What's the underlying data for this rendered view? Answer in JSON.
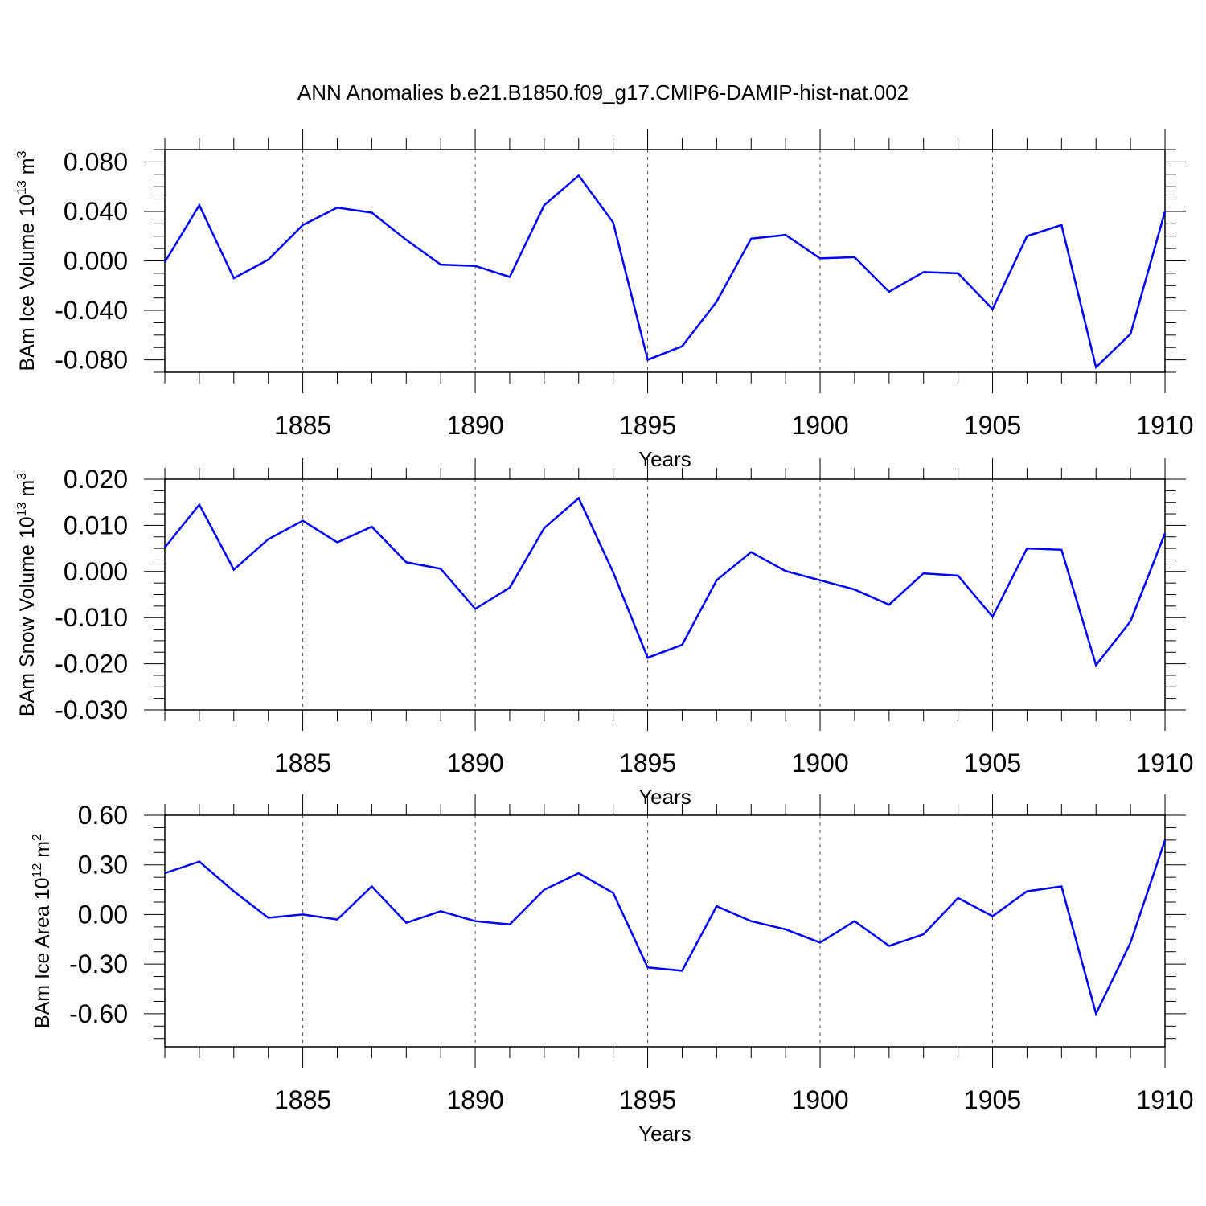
{
  "figure_title": "ANN Anomalies b.e21.B1850.f09_g17.CMIP6-DAMIP-hist-nat.002",
  "line_color": "#0000ff",
  "chart_data": [
    {
      "type": "line",
      "title": "ANN Anomalies b.e21.B1850.f09_g17.CMIP6-DAMIP-hist-nat.002",
      "ylabel": {
        "base": "BAm Ice Volume 10",
        "exp": "13",
        "unit": " m",
        "unit_exp": "3"
      },
      "xlabel": "Years",
      "xlim": [
        1881,
        1910
      ],
      "ylim": [
        -0.09,
        0.09
      ],
      "xticks": [
        1885,
        1890,
        1895,
        1900,
        1905,
        1910
      ],
      "yticks": [
        -0.08,
        -0.04,
        0.0,
        0.04,
        0.08
      ],
      "ytick_labels": [
        "-0.080",
        "-0.040",
        "0.000",
        "0.040",
        "0.080"
      ],
      "grid": "dashed vertical at major x ticks",
      "x": [
        1881,
        1882,
        1883,
        1884,
        1885,
        1886,
        1887,
        1888,
        1889,
        1890,
        1891,
        1892,
        1893,
        1894,
        1895,
        1896,
        1897,
        1898,
        1899,
        1900,
        1901,
        1902,
        1903,
        1904,
        1905,
        1906,
        1907,
        1908,
        1909,
        1910
      ],
      "values": [
        -0.001,
        0.045,
        -0.014,
        0.001,
        0.029,
        0.043,
        0.039,
        0.017,
        -0.003,
        -0.004,
        -0.013,
        0.045,
        0.069,
        0.031,
        -0.08,
        -0.069,
        -0.033,
        0.018,
        0.021,
        0.002,
        0.003,
        -0.025,
        -0.009,
        -0.01,
        -0.039,
        0.02,
        0.029,
        -0.086,
        -0.059,
        0.04
      ]
    },
    {
      "type": "line",
      "ylabel": {
        "base": "BAm Snow Volume 10",
        "exp": "13",
        "unit": " m",
        "unit_exp": "3"
      },
      "xlabel": "Years",
      "xlim": [
        1881,
        1910
      ],
      "ylim": [
        -0.03,
        0.02
      ],
      "xticks": [
        1885,
        1890,
        1895,
        1900,
        1905,
        1910
      ],
      "yticks": [
        -0.03,
        -0.02,
        -0.01,
        0.0,
        0.01,
        0.02
      ],
      "ytick_labels": [
        "-0.030",
        "-0.020",
        "-0.010",
        "0.000",
        "0.010",
        "0.020"
      ],
      "grid": "dashed vertical at major x ticks",
      "x": [
        1881,
        1882,
        1883,
        1884,
        1885,
        1886,
        1887,
        1888,
        1889,
        1890,
        1891,
        1892,
        1893,
        1894,
        1895,
        1896,
        1897,
        1898,
        1899,
        1900,
        1901,
        1902,
        1903,
        1904,
        1905,
        1906,
        1907,
        1908,
        1909,
        1910
      ],
      "values": [
        0.0052,
        0.0145,
        0.0004,
        0.007,
        0.011,
        0.0063,
        0.0097,
        0.002,
        0.0006,
        -0.0081,
        -0.0035,
        0.0094,
        0.0159,
        -0.0002,
        -0.0187,
        -0.0159,
        -0.0019,
        0.0042,
        0.0001,
        -0.0019,
        -0.0039,
        -0.0072,
        -0.0004,
        -0.0009,
        -0.0098,
        0.005,
        0.0047,
        -0.0203,
        -0.0108,
        0.0083
      ]
    },
    {
      "type": "line",
      "ylabel": {
        "base": "BAm Ice Area 10",
        "exp": "12",
        "unit": " m",
        "unit_exp": "2"
      },
      "xlabel": "Years",
      "xlim": [
        1881,
        1910
      ],
      "ylim": [
        -0.8,
        0.6
      ],
      "xticks": [
        1885,
        1890,
        1895,
        1900,
        1905,
        1910
      ],
      "yticks": [
        -0.6,
        -0.3,
        0.0,
        0.3,
        0.6
      ],
      "ytick_labels": [
        "-0.60",
        "-0.30",
        "0.00",
        "0.30",
        "0.60"
      ],
      "grid": "dashed vertical at major x ticks",
      "x": [
        1881,
        1882,
        1883,
        1884,
        1885,
        1886,
        1887,
        1888,
        1889,
        1890,
        1891,
        1892,
        1893,
        1894,
        1895,
        1896,
        1897,
        1898,
        1899,
        1900,
        1901,
        1902,
        1903,
        1904,
        1905,
        1906,
        1907,
        1908,
        1909,
        1910
      ],
      "values": [
        0.25,
        0.32,
        0.14,
        -0.02,
        0.0,
        -0.03,
        0.17,
        -0.05,
        0.02,
        -0.04,
        -0.06,
        0.15,
        0.25,
        0.13,
        -0.32,
        -0.34,
        0.05,
        -0.04,
        -0.09,
        -0.17,
        -0.04,
        -0.19,
        -0.12,
        0.1,
        -0.01,
        0.14,
        0.17,
        -0.6,
        -0.17,
        0.45
      ]
    }
  ]
}
